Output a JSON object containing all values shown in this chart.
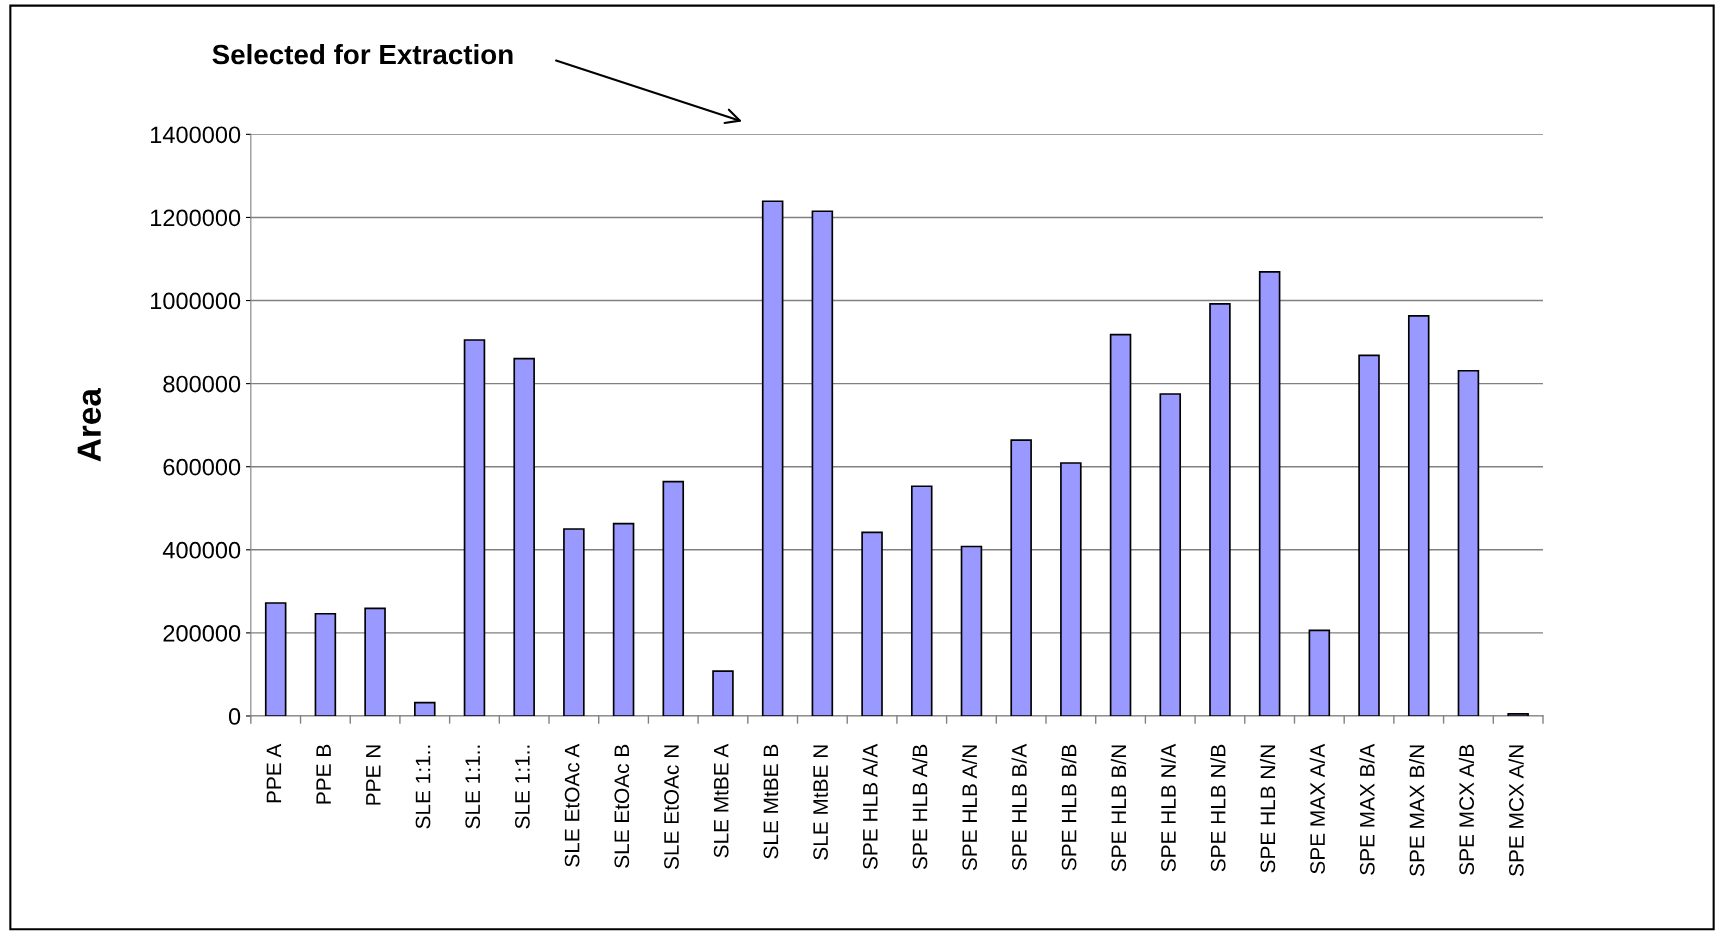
{
  "chart_data": {
    "type": "bar",
    "ylabel": "Area",
    "categories": [
      "PPE A",
      "PPE B",
      "PPE N",
      "SLE 1:1..",
      "SLE 1:1..",
      "SLE 1:1..",
      "SLE EtOAc A",
      "SLE EtOAc B",
      "SLE EtOAc N",
      "SLE MtBE A",
      "SLE MtBE B",
      "SLE MtBE N",
      "SPE HLB A/A",
      "SPE HLB A/B",
      "SPE HLB A/N",
      "SPE HLB B/A",
      "SPE HLB B/B",
      "SPE HLB B/N",
      "SPE HLB N/A",
      "SPE HLB N/B",
      "SPE HLB N/N",
      "SPE MAX A/A",
      "SPE MAX B/A",
      "SPE MAX B/N",
      "SPE MCX A/B",
      "SPE MCX A/N"
    ],
    "values": [
      272000,
      246000,
      259000,
      32000,
      905000,
      860000,
      450000,
      463000,
      564000,
      108000,
      1239000,
      1215000,
      442000,
      553000,
      408000,
      664000,
      609000,
      918000,
      775000,
      992000,
      1069000,
      206000,
      868000,
      963000,
      831000,
      5000
    ],
    "color": "#9999ff",
    "ylim": [
      0,
      1400000
    ],
    "yticks": [
      0,
      200000,
      400000,
      600000,
      800000,
      1000000,
      1200000,
      1400000
    ],
    "grid": "y",
    "annotations": [
      "Selected for Extraction"
    ]
  }
}
